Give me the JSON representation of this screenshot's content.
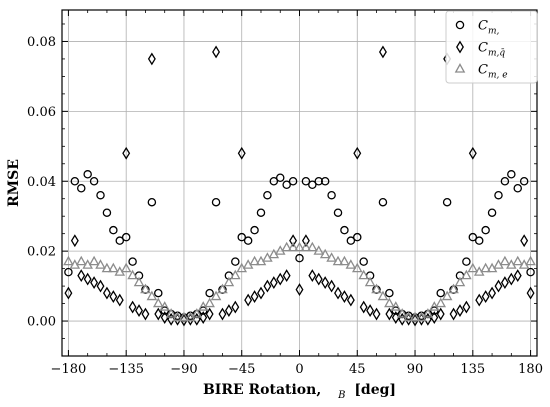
{
  "chart_data": {
    "type": "scatter",
    "xlabel": "BIRE Rotation, θ_B [deg]",
    "xlabel_prefix": "BIRE Rotation,",
    "xlabel_sub": "B",
    "xlabel_suffix": "[deg]",
    "ylabel": "RMSE",
    "xlim": [
      -185,
      185
    ],
    "ylim": [
      -0.01,
      0.089
    ],
    "xticks": [
      -180,
      -135,
      -90,
      -45,
      0,
      45,
      90,
      135,
      180
    ],
    "xtick_labels": [
      "−180",
      "−135",
      "−90",
      "−45",
      "0",
      "45",
      "90",
      "135",
      "180"
    ],
    "yticks": [
      0.0,
      0.02,
      0.04,
      0.06,
      0.08
    ],
    "ytick_labels": [
      "0.00",
      "0.02",
      "0.04",
      "0.06",
      "0.08"
    ],
    "grid": true,
    "legend_position": "top-right",
    "series": [
      {
        "name": "C_m,",
        "legend_main": "C",
        "legend_sub": "m,",
        "marker": "circle",
        "color": "#000000",
        "x": [
          -180,
          -175,
          -170,
          -165,
          -160,
          -155,
          -150,
          -145,
          -140,
          -135,
          -130,
          -125,
          -120,
          -115,
          -110,
          -105,
          -100,
          -95,
          -90,
          -85,
          -80,
          -75,
          -70,
          -65,
          -60,
          -55,
          -50,
          -45,
          -40,
          -35,
          -30,
          -25,
          -20,
          -15,
          -10,
          -5,
          0,
          5,
          10,
          15,
          20,
          25,
          30,
          35,
          40,
          45,
          50,
          55,
          60,
          65,
          70,
          75,
          80,
          85,
          90,
          95,
          100,
          105,
          110,
          115,
          120,
          125,
          130,
          135,
          140,
          145,
          150,
          155,
          160,
          165,
          170,
          175,
          180
        ],
        "y": [
          0.014,
          0.04,
          0.038,
          0.042,
          0.04,
          0.036,
          0.031,
          0.026,
          0.023,
          0.024,
          0.017,
          0.013,
          0.009,
          0.034,
          0.008,
          0.003,
          0.002,
          0.0015,
          0.001,
          0.0015,
          0.002,
          0.003,
          0.008,
          0.034,
          0.009,
          0.013,
          0.017,
          0.024,
          0.023,
          0.026,
          0.031,
          0.036,
          0.04,
          0.041,
          0.039,
          0.04,
          0.018,
          0.04,
          0.039,
          0.04,
          0.04,
          0.036,
          0.031,
          0.026,
          0.023,
          0.024,
          0.017,
          0.013,
          0.009,
          0.034,
          0.008,
          0.003,
          0.002,
          0.0015,
          0.001,
          0.0015,
          0.002,
          0.003,
          0.008,
          0.034,
          0.009,
          0.013,
          0.017,
          0.024,
          0.023,
          0.026,
          0.031,
          0.036,
          0.04,
          0.042,
          0.038,
          0.04,
          0.014
        ]
      },
      {
        "name": "C_m,q̄",
        "legend_main": "C",
        "legend_sub": "m,q̄",
        "marker": "diamond",
        "color": "#000000",
        "x": [
          -180,
          -175,
          -170,
          -165,
          -160,
          -155,
          -150,
          -145,
          -140,
          -135,
          -130,
          -125,
          -120,
          -115,
          -110,
          -105,
          -100,
          -95,
          -90,
          -85,
          -80,
          -75,
          -70,
          -65,
          -60,
          -55,
          -50,
          -45,
          -40,
          -35,
          -30,
          -25,
          -20,
          -15,
          -10,
          -5,
          0,
          5,
          10,
          15,
          20,
          25,
          30,
          35,
          40,
          45,
          50,
          55,
          60,
          65,
          70,
          75,
          80,
          85,
          90,
          95,
          100,
          105,
          110,
          115,
          120,
          125,
          130,
          135,
          140,
          145,
          150,
          155,
          160,
          165,
          170,
          175,
          180
        ],
        "y": [
          0.008,
          0.023,
          0.013,
          0.012,
          0.011,
          0.01,
          0.008,
          0.007,
          0.006,
          0.048,
          0.004,
          0.003,
          0.002,
          0.075,
          0.002,
          0.001,
          0.0005,
          0.0005,
          0.0003,
          0.0005,
          0.0005,
          0.001,
          0.002,
          0.077,
          0.002,
          0.003,
          0.004,
          0.048,
          0.006,
          0.007,
          0.008,
          0.01,
          0.011,
          0.012,
          0.013,
          0.023,
          0.009,
          0.023,
          0.013,
          0.012,
          0.011,
          0.01,
          0.008,
          0.007,
          0.006,
          0.048,
          0.004,
          0.003,
          0.002,
          0.077,
          0.002,
          0.001,
          0.0005,
          0.0005,
          0.0003,
          0.0005,
          0.0005,
          0.001,
          0.002,
          0.075,
          0.002,
          0.003,
          0.004,
          0.048,
          0.006,
          0.007,
          0.008,
          0.01,
          0.011,
          0.012,
          0.013,
          0.023,
          0.008
        ]
      },
      {
        "name": "C_m,e",
        "legend_main": "C",
        "legend_sub": "m, e",
        "marker": "triangle",
        "color": "#8c8c8c",
        "x": [
          -180,
          -175,
          -170,
          -165,
          -160,
          -155,
          -150,
          -145,
          -140,
          -135,
          -130,
          -125,
          -120,
          -115,
          -110,
          -105,
          -100,
          -95,
          -90,
          -85,
          -80,
          -75,
          -70,
          -65,
          -60,
          -55,
          -50,
          -45,
          -40,
          -35,
          -30,
          -25,
          -20,
          -15,
          -10,
          -5,
          0,
          5,
          10,
          15,
          20,
          25,
          30,
          35,
          40,
          45,
          50,
          55,
          60,
          65,
          70,
          75,
          80,
          85,
          90,
          95,
          100,
          105,
          110,
          115,
          120,
          125,
          130,
          135,
          140,
          145,
          150,
          155,
          160,
          165,
          170,
          175,
          180
        ],
        "y": [
          0.017,
          0.016,
          0.017,
          0.016,
          0.017,
          0.016,
          0.015,
          0.015,
          0.014,
          0.015,
          0.013,
          0.011,
          0.009,
          0.007,
          0.005,
          0.004,
          0.002,
          0.001,
          0.001,
          0.001,
          0.002,
          0.004,
          0.005,
          0.007,
          0.009,
          0.011,
          0.013,
          0.015,
          0.016,
          0.017,
          0.017,
          0.018,
          0.019,
          0.02,
          0.021,
          0.021,
          0.021,
          0.021,
          0.021,
          0.02,
          0.019,
          0.018,
          0.017,
          0.017,
          0.016,
          0.015,
          0.013,
          0.011,
          0.009,
          0.007,
          0.005,
          0.004,
          0.002,
          0.001,
          0.001,
          0.001,
          0.002,
          0.004,
          0.005,
          0.007,
          0.009,
          0.011,
          0.013,
          0.015,
          0.014,
          0.015,
          0.015,
          0.016,
          0.017,
          0.016,
          0.017,
          0.016,
          0.017
        ]
      }
    ]
  }
}
